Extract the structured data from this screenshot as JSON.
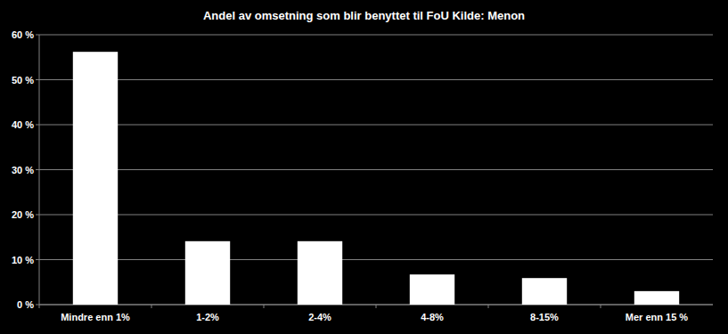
{
  "chart_data": {
    "type": "bar",
    "title": "Andel av omsetning som blir benyttet til FoU Kilde: Menon",
    "categories": [
      "Mindre enn 1%",
      "1-2%",
      "2-4%",
      "4-8%",
      "8-15%",
      "Mer enn 15 %"
    ],
    "values": [
      56.2,
      14.1,
      14.1,
      6.7,
      5.9,
      3.0
    ],
    "color": "#ffffff",
    "ylim": [
      0,
      60
    ],
    "yticks": [
      {
        "value": 0,
        "label": "0 %"
      },
      {
        "value": 10,
        "label": "10 %"
      },
      {
        "value": 20,
        "label": "20 %"
      },
      {
        "value": 30,
        "label": "30 %"
      },
      {
        "value": 40,
        "label": "40 %"
      },
      {
        "value": 50,
        "label": "50 %"
      },
      {
        "value": 60,
        "label": "60 %"
      }
    ],
    "grid": true
  }
}
